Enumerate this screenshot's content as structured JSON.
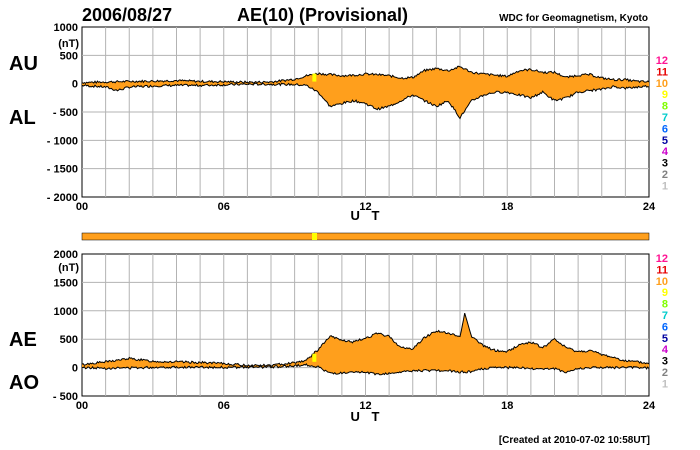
{
  "header": {
    "date": "2006/08/27",
    "title": "AE(10) (Provisional)",
    "source": "WDC for Geomagnetism, Kyoto",
    "created": "[Created at 2010-07-02 10:58UT]"
  },
  "colors": {
    "fill": "#ff9f1c",
    "band": "#ff9f1c",
    "band_highlight": "#ffff00",
    "grid": "#b3b3b3",
    "line": "#000000"
  },
  "station_scale": [
    {
      "label": "12",
      "color": "#ff1493"
    },
    {
      "label": "11",
      "color": "#e60000"
    },
    {
      "label": "10",
      "color": "#ff9f1c"
    },
    {
      "label": "9",
      "color": "#ffff00"
    },
    {
      "label": "8",
      "color": "#80ff00"
    },
    {
      "label": "7",
      "color": "#00cccc"
    },
    {
      "label": "6",
      "color": "#0066ff"
    },
    {
      "label": "5",
      "color": "#0000a0"
    },
    {
      "label": "4",
      "color": "#cc00cc"
    },
    {
      "label": "3",
      "color": "#000000"
    },
    {
      "label": "2",
      "color": "#808080"
    },
    {
      "label": "1",
      "color": "#c0c0c0"
    }
  ],
  "chart_data": [
    {
      "type": "area",
      "name": "AU/AL",
      "labels": {
        "upper": "AU",
        "lower": "AL"
      },
      "unit": "(nT)",
      "xlabel": "U T",
      "xlim": [
        0,
        24
      ],
      "xticks": [
        "00",
        "06",
        "12",
        "18",
        "24"
      ],
      "ylim": [
        -2000,
        1000
      ],
      "yticks": [
        "1000",
        "500",
        "0",
        "- 500",
        "- 1000",
        "- 1500",
        "- 2000"
      ],
      "grid": true,
      "upper_series": {
        "name": "AU",
        "x": [
          0,
          1,
          2,
          3,
          4,
          5,
          6,
          7,
          8,
          9,
          9.5,
          10,
          10.5,
          11,
          11.5,
          12,
          12.5,
          13,
          13.5,
          14,
          14.5,
          15,
          15.5,
          16,
          16.5,
          17,
          17.5,
          18,
          18.5,
          19,
          19.5,
          20,
          20.5,
          21,
          21.5,
          22,
          22.5,
          23,
          23.5,
          24
        ],
        "values": [
          20,
          30,
          40,
          45,
          55,
          40,
          35,
          25,
          30,
          80,
          140,
          180,
          160,
          140,
          150,
          170,
          160,
          140,
          100,
          110,
          230,
          270,
          230,
          300,
          200,
          170,
          150,
          130,
          230,
          250,
          200,
          200,
          110,
          150,
          160,
          100,
          70,
          70,
          40,
          30
        ]
      },
      "lower_series": {
        "name": "AL",
        "x": [
          0,
          1,
          1.5,
          2,
          3,
          4,
          5,
          6,
          7,
          8,
          9,
          9.5,
          10,
          10.5,
          11,
          11.5,
          12,
          12.5,
          13,
          13.5,
          14,
          14.5,
          15,
          15.5,
          16,
          16.5,
          17,
          17.5,
          18,
          18.5,
          19,
          19.5,
          20,
          20.5,
          21,
          21.5,
          22,
          22.5,
          23,
          23.5,
          24
        ],
        "values": [
          -30,
          -60,
          -120,
          -60,
          -40,
          -30,
          -30,
          -20,
          -10,
          -10,
          -15,
          -30,
          -150,
          -400,
          -350,
          -300,
          -350,
          -450,
          -400,
          -300,
          -200,
          -300,
          -400,
          -300,
          -600,
          -300,
          -200,
          -150,
          -150,
          -200,
          -250,
          -150,
          -300,
          -250,
          -150,
          -120,
          -100,
          -50,
          -80,
          -60,
          -40
        ]
      }
    },
    {
      "type": "area",
      "name": "AE/AO",
      "labels": {
        "upper": "AE",
        "lower": "AO"
      },
      "unit": "(nT)",
      "xlabel": "U T",
      "xlim": [
        0,
        24
      ],
      "xticks": [
        "00",
        "06",
        "12",
        "18",
        "24"
      ],
      "ylim": [
        -500,
        2000
      ],
      "yticks": [
        "2000",
        "1500",
        "1000",
        "500",
        "0",
        "- 500"
      ],
      "grid": true,
      "upper_series": {
        "name": "AE",
        "x": [
          0,
          0.5,
          1,
          1.5,
          2,
          3,
          4,
          5,
          6,
          7,
          8,
          9,
          9.5,
          10,
          10.5,
          11,
          11.5,
          12,
          12.5,
          13,
          13.5,
          14,
          14.5,
          15,
          15.5,
          16,
          16.2,
          16.5,
          17,
          17.5,
          18,
          18.5,
          19,
          19.5,
          20,
          20.5,
          21,
          21.5,
          22,
          22.5,
          23,
          23.5,
          24
        ],
        "values": [
          50,
          80,
          100,
          130,
          160,
          110,
          100,
          90,
          70,
          40,
          40,
          90,
          130,
          320,
          550,
          480,
          450,
          520,
          600,
          550,
          350,
          330,
          530,
          650,
          600,
          550,
          950,
          550,
          380,
          300,
          280,
          400,
          450,
          350,
          500,
          350,
          280,
          300,
          230,
          180,
          120,
          100,
          70
        ]
      },
      "lower_series": {
        "name": "AO",
        "x": [
          0,
          1,
          2,
          3,
          4,
          5,
          6,
          7,
          8,
          9,
          9.5,
          10,
          10.5,
          11,
          11.5,
          12,
          12.5,
          13,
          13.5,
          14,
          14.5,
          15,
          15.5,
          16,
          16.5,
          17,
          17.5,
          18,
          18.5,
          19,
          19.5,
          20,
          20.5,
          21,
          21.5,
          22,
          22.5,
          23,
          23.5,
          24
        ],
        "values": [
          0,
          -10,
          -5,
          5,
          10,
          5,
          5,
          5,
          10,
          30,
          50,
          10,
          -100,
          -100,
          -90,
          -80,
          -120,
          -100,
          -80,
          -60,
          -50,
          -50,
          -60,
          -80,
          -70,
          -20,
          0,
          0,
          0,
          -20,
          -20,
          -20,
          -80,
          -20,
          0,
          0,
          0,
          0,
          0,
          -10
        ]
      }
    }
  ]
}
